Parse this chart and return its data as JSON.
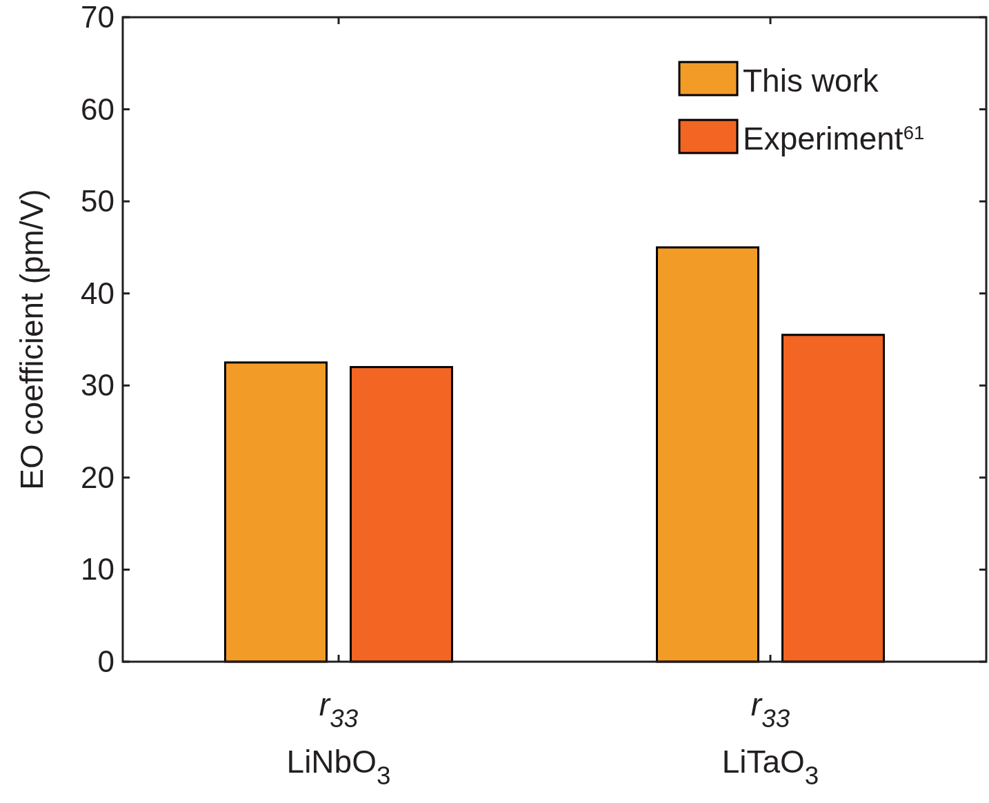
{
  "chart_data": {
    "type": "bar",
    "ylabel": "EO coefficient (pm/V)",
    "categories": [
      "r$_{33}$\nLiNbO$_{3}$",
      "r$_{33}$\nLiTaO$_{3}$"
    ],
    "series": [
      {
        "name": "This work",
        "color": "#f29b26",
        "values": [
          32.5,
          45
        ]
      },
      {
        "name": "Experiment$^{61}$",
        "color": "#f26522",
        "values": [
          32,
          35.5
        ]
      }
    ],
    "ylim": [
      0,
      70
    ],
    "yticks": [
      0,
      10,
      20,
      30,
      40,
      50,
      60,
      70
    ],
    "grid": false,
    "legend": "top right"
  }
}
